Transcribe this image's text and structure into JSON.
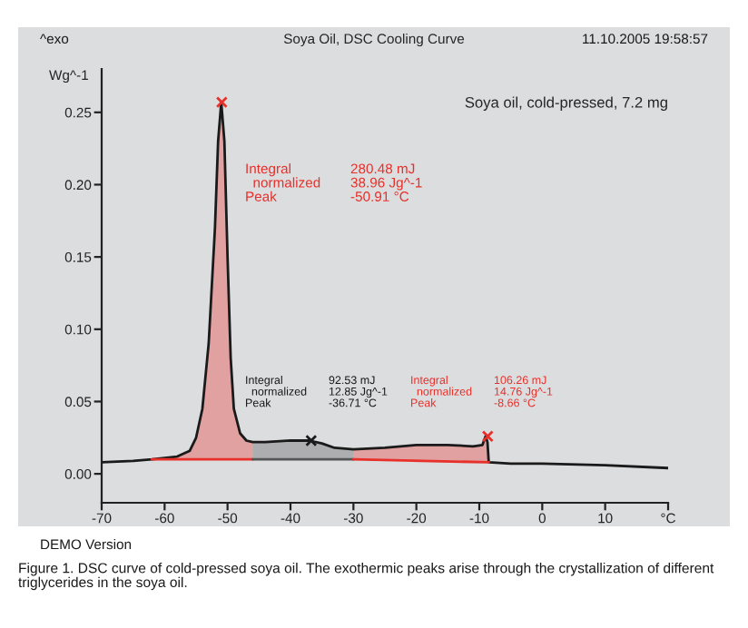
{
  "chart_data": {
    "type": "line",
    "title": "Soya Oil, DSC Cooling Curve",
    "subtitle": "Soya oil, cold-pressed, 7.2 mg",
    "ylabel": "Wg^-1",
    "x": [
      -70,
      -65,
      -62,
      -58,
      -56,
      -55,
      -54,
      -53,
      -52,
      -51.5,
      -51,
      -50.5,
      -50,
      -49.5,
      -49,
      -48,
      -47,
      -46,
      -44,
      -40,
      -37,
      -35,
      -33,
      -30,
      -25,
      -20,
      -15,
      -11,
      -9.5,
      -9,
      -8.7,
      -8.5,
      -5,
      0,
      10,
      20
    ],
    "series": [
      {
        "type": "line",
        "color": "#1a1a1a",
        "values": [
          0.008,
          0.009,
          0.01,
          0.012,
          0.016,
          0.025,
          0.045,
          0.09,
          0.17,
          0.23,
          0.257,
          0.23,
          0.15,
          0.08,
          0.045,
          0.028,
          0.023,
          0.022,
          0.022,
          0.023,
          0.023,
          0.021,
          0.018,
          0.017,
          0.018,
          0.02,
          0.02,
          0.019,
          0.02,
          0.026,
          0.022,
          0.008,
          0.007,
          0.007,
          0.006,
          0.004
        ]
      },
      {
        "type": "line",
        "color": "#e8302a",
        "x": [
          -62,
          -46
        ],
        "values": [
          0.01,
          0.01
        ]
      },
      {
        "type": "area",
        "color": "#e8302a",
        "x": [
          -62,
          -58,
          -56,
          -55,
          -54,
          -53,
          -52,
          -51.5,
          -51,
          -50.5,
          -50,
          -49.5,
          -49,
          -48,
          -47,
          -46
        ],
        "values": [
          0.01,
          0.012,
          0.016,
          0.025,
          0.045,
          0.09,
          0.17,
          0.23,
          0.257,
          0.23,
          0.15,
          0.08,
          0.045,
          0.028,
          0.023,
          0.022
        ]
      },
      {
        "type": "line",
        "color": "#555555",
        "x": [
          -46,
          -30
        ],
        "values": [
          0.01,
          0.01
        ]
      },
      {
        "type": "area",
        "color": "#555555",
        "x": [
          -46,
          -44,
          -40,
          -37,
          -35,
          -33,
          -30
        ],
        "values": [
          0.022,
          0.022,
          0.023,
          0.023,
          0.021,
          0.018,
          0.017
        ]
      },
      {
        "type": "line",
        "color": "#e8302a",
        "x": [
          -30,
          -8.5
        ],
        "values": [
          0.01,
          0.008
        ]
      },
      {
        "type": "area",
        "color": "#e8302a",
        "x": [
          -30,
          -25,
          -20,
          -15,
          -11,
          -9.5,
          -9,
          -8.7,
          -8.5
        ],
        "values": [
          0.017,
          0.018,
          0.02,
          0.02,
          0.019,
          0.02,
          0.026,
          0.022,
          0.008
        ]
      },
      {
        "type": "scatter",
        "marker": "cross",
        "x": [
          -50.91,
          -36.71,
          -8.66
        ],
        "values": [
          0.257,
          0.023,
          0.026
        ],
        "colors": [
          "#e8302a",
          "#1a1a1a",
          "#e8302a"
        ]
      }
    ],
    "xlim": [
      -70,
      20
    ],
    "ylim": [
      -0.02,
      0.28
    ],
    "xticks": [
      -70,
      -60,
      -50,
      -40,
      -30,
      -20,
      -10,
      0,
      10,
      {
        "value": 20,
        "label": "°C"
      }
    ],
    "yticks": [
      {
        "value": 0,
        "label": "0.00"
      },
      0.05,
      {
        "value": 0.1,
        "label": "0.10"
      },
      0.15,
      {
        "value": 0.2,
        "label": "0.20"
      },
      0.25
    ],
    "grid": false,
    "legend": false,
    "annotations": [
      "^exo",
      "11.10.2005 19:58:57",
      "Integral\n  normalized\nPeak",
      "280.48 mJ\n38.96 Jg^-1\n-50.91 °C",
      "Integral\n  normalized\nPeak",
      "92.53 mJ\n12.85 Jg^-1\n-36.71 °C",
      "Integral\n  normalized\nPeak",
      "106.26 mJ\n14.76 Jg^-1\n-8.66 °C",
      "DEMO Version",
      "Figure 1. DSC curve of cold-pressed soya oil. The exothermic peaks arise through the crystallization of different triglycerides in the soya oil."
    ]
  }
}
